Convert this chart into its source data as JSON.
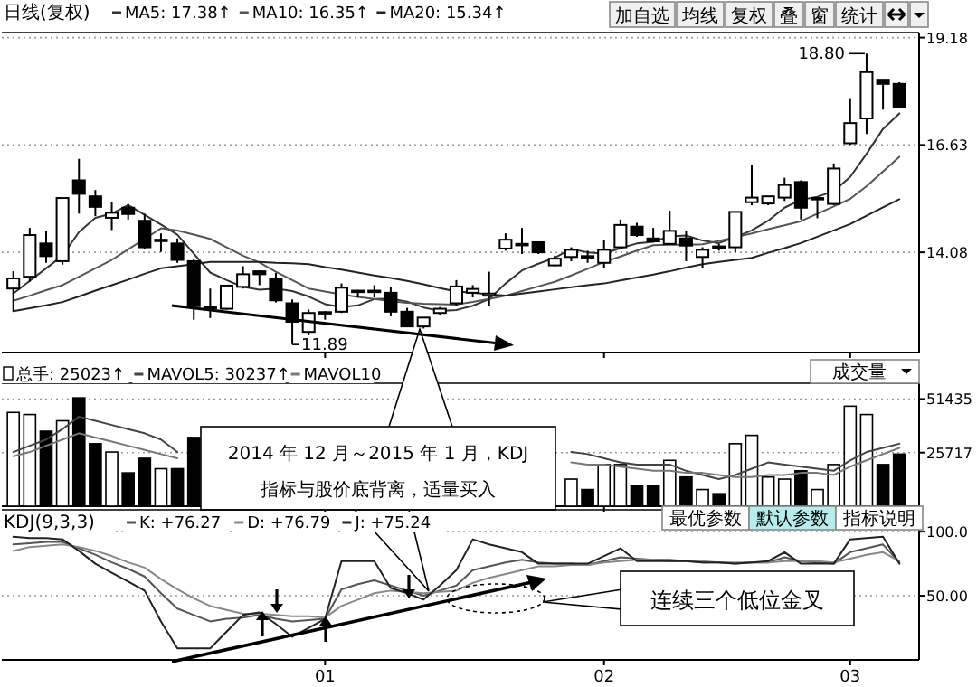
{
  "chart_data": [
    {
      "type": "candlestick",
      "title": "日线(复权)",
      "legend": "top",
      "grid": "y",
      "tick_labels": "y",
      "color": "#000000",
      "categories": [
        null,
        null,
        null,
        null,
        null,
        null,
        null,
        null,
        null,
        null,
        null,
        null,
        null,
        null,
        null,
        null,
        null,
        null,
        null,
        "01",
        null,
        null,
        null,
        null,
        null,
        null,
        null,
        null,
        null,
        null,
        null,
        null,
        null,
        null,
        null,
        null,
        "02",
        null,
        null,
        null,
        null,
        null,
        null,
        null,
        null,
        null,
        null,
        null,
        null,
        null,
        null,
        "03",
        null,
        null,
        null
      ],
      "ylim": [
        11.7,
        19.3
      ],
      "yticks": [
        19.18,
        16.63,
        14.08
      ],
      "ohlc": [
        [
          13.22,
          13.63,
          12.68,
          13.46
        ],
        [
          13.5,
          14.66,
          13.38,
          14.49
        ],
        [
          14.29,
          14.59,
          13.83,
          13.99
        ],
        [
          13.87,
          15.37,
          13.79,
          15.37
        ],
        [
          15.79,
          16.3,
          15.0,
          15.47
        ],
        [
          15.41,
          15.56,
          14.94,
          15.16
        ],
        [
          14.9,
          15.27,
          14.61,
          15.02
        ],
        [
          15.14,
          15.23,
          14.86,
          14.99
        ],
        [
          14.83,
          15.0,
          14.16,
          14.2
        ],
        [
          14.35,
          14.53,
          14.09,
          14.38
        ],
        [
          14.29,
          14.41,
          13.83,
          13.9
        ],
        [
          13.87,
          13.93,
          12.48,
          12.8
        ],
        [
          12.78,
          13.22,
          12.52,
          12.74
        ],
        [
          12.74,
          13.3,
          12.72,
          13.29
        ],
        [
          13.26,
          13.75,
          13.22,
          13.56
        ],
        [
          13.63,
          13.63,
          13.3,
          13.56
        ],
        [
          13.46,
          13.59,
          12.89,
          12.94
        ],
        [
          12.87,
          12.96,
          11.89,
          12.43
        ],
        [
          12.19,
          12.72,
          12.11,
          12.64
        ],
        [
          12.66,
          12.68,
          12.48,
          12.66
        ],
        [
          12.67,
          13.34,
          12.64,
          13.24
        ],
        [
          13.17,
          13.17,
          13.01,
          13.15
        ],
        [
          13.15,
          13.3,
          13.01,
          13.17
        ],
        [
          13.12,
          13.26,
          12.56,
          12.67
        ],
        [
          12.67,
          12.76,
          12.32,
          12.32
        ],
        [
          12.32,
          12.53,
          12.27,
          12.53
        ],
        [
          12.64,
          12.78,
          12.6,
          12.74
        ],
        [
          12.87,
          13.42,
          12.8,
          13.27
        ],
        [
          13.12,
          13.3,
          13.01,
          13.21
        ],
        [
          13.05,
          13.62,
          12.8,
          13.1
        ],
        [
          14.17,
          14.53,
          14.12,
          14.38
        ],
        [
          14.26,
          14.66,
          14.04,
          14.28
        ],
        [
          14.32,
          14.32,
          14.04,
          14.08
        ],
        [
          13.77,
          14.0,
          13.75,
          13.93
        ],
        [
          13.97,
          14.2,
          13.87,
          14.14
        ],
        [
          13.99,
          14.12,
          13.83,
          13.97
        ],
        [
          13.83,
          14.38,
          13.71,
          14.14
        ],
        [
          14.2,
          14.86,
          14.16,
          14.73
        ],
        [
          14.69,
          14.78,
          14.45,
          14.49
        ],
        [
          14.41,
          14.66,
          14.33,
          14.34
        ],
        [
          14.28,
          15.07,
          14.26,
          14.59
        ],
        [
          14.41,
          14.59,
          13.87,
          14.24
        ],
        [
          13.97,
          14.2,
          13.71,
          14.14
        ],
        [
          14.22,
          14.28,
          14.12,
          14.2
        ],
        [
          14.2,
          15.04,
          14.08,
          15.04
        ],
        [
          15.27,
          16.15,
          15.2,
          15.38
        ],
        [
          15.24,
          15.41,
          15.2,
          15.41
        ],
        [
          15.38,
          15.85,
          15.3,
          15.68
        ],
        [
          15.75,
          15.79,
          14.86,
          15.14
        ],
        [
          15.35,
          15.37,
          14.89,
          15.37
        ],
        [
          15.23,
          16.19,
          15.2,
          16.07
        ],
        [
          16.67,
          17.74,
          16.63,
          17.15
        ],
        [
          17.26,
          18.8,
          16.89,
          18.36
        ],
        [
          18.18,
          18.18,
          17.47,
          18.08
        ],
        [
          18.08,
          18.12,
          17.5,
          17.53
        ]
      ],
      "series": [
        {
          "type": "line",
          "name": "MA5: 17.38↑",
          "color": "#333333",
          "values": [
            13.1,
            13.4,
            13.7,
            14.0,
            14.56,
            14.9,
            15.0,
            15.2,
            14.97,
            14.74,
            14.5,
            14.05,
            13.6,
            13.42,
            13.26,
            13.19,
            13.22,
            13.16,
            13.03,
            12.85,
            12.78,
            12.82,
            12.97,
            12.98,
            12.91,
            12.77,
            12.69,
            12.71,
            12.81,
            12.97,
            13.34,
            13.65,
            13.81,
            13.95,
            14.16,
            14.08,
            14.05,
            14.18,
            14.29,
            14.33,
            14.46,
            14.48,
            14.36,
            14.3,
            14.44,
            14.6,
            14.83,
            15.14,
            15.33,
            15.4,
            15.53,
            15.87,
            16.42,
            17.01,
            17.38
          ]
        },
        {
          "type": "line",
          "name": "MA10: 16.35↑",
          "color": "#555555",
          "values": [
            12.93,
            13.05,
            13.18,
            13.3,
            13.5,
            13.7,
            13.9,
            14.15,
            14.4,
            14.65,
            14.6,
            14.5,
            14.4,
            14.2,
            14.0,
            13.84,
            13.62,
            13.42,
            13.22,
            13.15,
            13.08,
            13.02,
            12.97,
            12.92,
            12.88,
            12.86,
            12.85,
            12.84,
            12.9,
            12.97,
            13.05,
            13.16,
            13.27,
            13.38,
            13.53,
            13.69,
            13.85,
            13.98,
            14.12,
            14.25,
            14.26,
            14.26,
            14.27,
            14.35,
            14.44,
            14.53,
            14.63,
            14.72,
            14.82,
            15.0,
            15.17,
            15.35,
            15.65,
            16.0,
            16.35
          ]
        },
        {
          "type": "line",
          "name": "MA20: 15.34↑",
          "color": "#222222",
          "values": [
            12.68,
            12.75,
            12.82,
            12.9,
            13.03,
            13.17,
            13.3,
            13.43,
            13.57,
            13.7,
            13.75,
            13.8,
            13.85,
            13.85,
            13.85,
            13.85,
            13.83,
            13.82,
            13.8,
            13.73,
            13.67,
            13.6,
            13.53,
            13.47,
            13.4,
            13.32,
            13.23,
            13.15,
            13.12,
            13.08,
            13.05,
            13.1,
            13.15,
            13.2,
            13.25,
            13.3,
            13.34,
            13.41,
            13.48,
            13.55,
            13.63,
            13.72,
            13.8,
            13.85,
            13.9,
            13.95,
            14.07,
            14.18,
            14.3,
            14.45,
            14.6,
            14.75,
            14.95,
            15.15,
            15.34
          ]
        }
      ],
      "annotations": [
        "18.80",
        "11.89",
        "加自选",
        "均线",
        "复权",
        "叠",
        "窗",
        "统计"
      ]
    },
    {
      "type": "bar",
      "legend": "top",
      "grid": "y",
      "tick_labels": "y",
      "categories": [
        null,
        null,
        null,
        null,
        null,
        null,
        null,
        null,
        null,
        null,
        null,
        null,
        null,
        null,
        null,
        null,
        null,
        null,
        null,
        "01",
        null,
        null,
        null,
        null,
        null,
        null,
        null,
        null,
        null,
        null,
        null,
        null,
        null,
        null,
        null,
        null,
        "02",
        null,
        null,
        null,
        null,
        null,
        null,
        null,
        null,
        null,
        null,
        null,
        null,
        null,
        null,
        "03",
        null,
        null,
        null
      ],
      "ylim": [
        0,
        59000
      ],
      "yticks": [
        51435,
        25717
      ],
      "series": [
        {
          "name": "总手: 25023↑",
          "colors": [
            "#ffffff",
            "#ffffff",
            "#000000",
            "#ffffff",
            "#000000",
            "#000000",
            "#ffffff",
            "#000000",
            "#000000",
            "#ffffff",
            "#000000",
            "#000000",
            null,
            null,
            null,
            null,
            null,
            null,
            null,
            null,
            null,
            null,
            null,
            null,
            null,
            null,
            null,
            null,
            null,
            null,
            null,
            null,
            null,
            null,
            "#ffffff",
            "#000000",
            "#ffffff",
            "#ffffff",
            "#000000",
            "#000000",
            "#ffffff",
            "#000000",
            "#ffffff",
            "#000000",
            "#ffffff",
            "#ffffff",
            "#ffffff",
            "#ffffff",
            "#000000",
            "#ffffff",
            "#ffffff",
            "#ffffff",
            "#ffffff",
            "#000000",
            "#000000"
          ],
          "values": [
            45000,
            44000,
            36000,
            41000,
            52000,
            30000,
            26000,
            16000,
            23000,
            18000,
            18000,
            33000,
            null,
            null,
            null,
            null,
            null,
            null,
            null,
            null,
            null,
            null,
            null,
            null,
            null,
            null,
            null,
            null,
            null,
            null,
            null,
            null,
            null,
            null,
            13000,
            8000,
            20000,
            20000,
            10000,
            10000,
            22000,
            14000,
            8000,
            6000,
            30000,
            34000,
            14000,
            13000,
            17000,
            8000,
            20000,
            48000,
            44000,
            20000,
            25000
          ]
        },
        {
          "type": "line",
          "name": "MAVOL5: 30237↑",
          "color": "#444444",
          "values": [
            26000,
            29000,
            32000,
            37000,
            43000,
            41000,
            39000,
            37000,
            35000,
            32000,
            26000,
            null,
            null,
            null,
            null,
            null,
            null,
            null,
            null,
            null,
            null,
            null,
            null,
            null,
            null,
            null,
            null,
            null,
            null,
            null,
            null,
            null,
            null,
            null,
            26000,
            25000,
            23000,
            21000,
            20000,
            20000,
            20000,
            17000,
            15000,
            13000,
            15000,
            18000,
            21000,
            20000,
            19000,
            18000,
            17000,
            22000,
            26000,
            28000,
            30000
          ]
        },
        {
          "type": "line",
          "name": "MAVOL10",
          "color": "#777777",
          "values": [
            24000,
            26000,
            29000,
            32000,
            35000,
            33000,
            31000,
            29000,
            27000,
            25000,
            23000,
            null,
            null,
            null,
            null,
            null,
            null,
            null,
            null,
            null,
            null,
            null,
            null,
            null,
            null,
            null,
            null,
            null,
            null,
            null,
            null,
            null,
            null,
            null,
            21000,
            20000,
            20000,
            19000,
            18000,
            17000,
            17000,
            16000,
            16000,
            15000,
            14000,
            14000,
            15000,
            15000,
            16000,
            16000,
            15000,
            19000,
            22000,
            25000,
            28000
          ]
        }
      ],
      "annotations": [
        "成交量",
        "2014 年 12 月～2015 年 1 月，KDJ",
        "指标与股价底背离，适量买入"
      ]
    },
    {
      "type": "line",
      "title": "KDJ(9,3,3)",
      "legend": "top",
      "grid": "y",
      "categories": [
        null,
        null,
        null,
        null,
        null,
        null,
        null,
        null,
        null,
        null,
        null,
        null,
        null,
        null,
        null,
        null,
        null,
        null,
        null,
        "01",
        null,
        null,
        null,
        null,
        null,
        null,
        null,
        null,
        null,
        null,
        null,
        null,
        null,
        null,
        null,
        null,
        "02",
        null,
        null,
        null,
        null,
        null,
        null,
        null,
        null,
        null,
        null,
        null,
        null,
        null,
        null,
        "03",
        null,
        null,
        null
      ],
      "ylim": [
        0,
        117
      ],
      "yticks": [
        {
          "value": 100,
          "label": "100.0"
        },
        {
          "value": 50,
          "label": "50.00"
        }
      ],
      "series": [
        {
          "name": "K: +76.27",
          "color": "#555555",
          "values": [
            90,
            91,
            92,
            92,
            87,
            82,
            76,
            71,
            65,
            52,
            40,
            35,
            30,
            32,
            33,
            35,
            32,
            30,
            31,
            32,
            55,
            59,
            62,
            58,
            54,
            50,
            54,
            58,
            70,
            73,
            76,
            78,
            76,
            75,
            75,
            74,
            77,
            80,
            79,
            78,
            78,
            77,
            76,
            76,
            75,
            76,
            76,
            80,
            77,
            76,
            75,
            84,
            87,
            90,
            76
          ]
        },
        {
          "name": "D: +76.79",
          "color": "#888888",
          "values": [
            85,
            88,
            89,
            90,
            88,
            85,
            81,
            76,
            72,
            63,
            55,
            48,
            42,
            39,
            36,
            36,
            35,
            34,
            34,
            33,
            42,
            47,
            52,
            54,
            53,
            52,
            53,
            54,
            60,
            64,
            67,
            70,
            73,
            73,
            74,
            74,
            76,
            77,
            78,
            78,
            77,
            77,
            77,
            76,
            76,
            76,
            76,
            77,
            77,
            77,
            76,
            79,
            82,
            84,
            77
          ]
        },
        {
          "name": "J: +75.24",
          "color": "#222222",
          "values": [
            96,
            95,
            95,
            94,
            85,
            75,
            68,
            61,
            54,
            30,
            9,
            9,
            9,
            22,
            35,
            37,
            28,
            18,
            25,
            32,
            77,
            77,
            77,
            56,
            52,
            47,
            58,
            70,
            94,
            90,
            87,
            84,
            75,
            75,
            75,
            75,
            81,
            87,
            77,
            77,
            77,
            77,
            76,
            76,
            75,
            76,
            77,
            84,
            75,
            75,
            75,
            94,
            95,
            96,
            75
          ]
        }
      ],
      "annotations": [
        "最优参数",
        "默认参数",
        "指标说明",
        "连续三个低位金叉"
      ]
    }
  ]
}
